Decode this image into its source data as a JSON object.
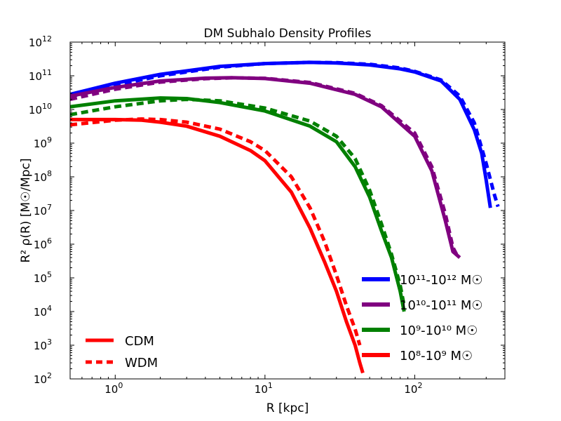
{
  "chart_data": {
    "type": "line",
    "title": "DM Subhalo Density Profiles",
    "xlabel": "R [kpc]",
    "ylabel": "R² ρ(R) [M☉/Mpc]",
    "xscale": "log",
    "yscale": "log",
    "xlim": [
      0.5,
      400
    ],
    "ylim": [
      100,
      1000000000000
    ],
    "x_tick_base": "10",
    "x_tick_exponents": [
      "0",
      "1",
      "2"
    ],
    "y_tick_base": "10",
    "y_tick_exponents": [
      "2",
      "3",
      "4",
      "5",
      "6",
      "7",
      "8",
      "9",
      "10",
      "11",
      "12"
    ],
    "style_legend": [
      {
        "label": "CDM",
        "style": "solid",
        "color": "#ff0000"
      },
      {
        "label": "WDM",
        "style": "dotted",
        "color": "#ff0000"
      }
    ],
    "mass_legend": [
      {
        "label": "10¹¹-10¹² M☉",
        "color": "#0000ff"
      },
      {
        "label": "10¹⁰-10¹¹ M☉",
        "color": "#800080"
      },
      {
        "label": "10⁹-10¹⁰ M☉",
        "color": "#008000"
      },
      {
        "label": "10⁸-10⁹ M☉",
        "color": "#ff0000"
      }
    ],
    "series": [
      {
        "name": "10^11-10^12 CDM",
        "color": "#0000ff",
        "style": "solid",
        "x": [
          0.5,
          1,
          2,
          5,
          10,
          20,
          30,
          50,
          80,
          100,
          150,
          200,
          250,
          280,
          300,
          320
        ],
        "y": [
          28000000000.0,
          60000000000.0,
          110000000000.0,
          190000000000.0,
          230000000000.0,
          250000000000.0,
          240000000000.0,
          210000000000.0,
          160000000000.0,
          130000000000.0,
          70000000000.0,
          20000000000.0,
          2500000000.0,
          500000000.0,
          80000000.0,
          12000000.0
        ]
      },
      {
        "name": "10^11-10^12 WDM",
        "color": "#0000ff",
        "style": "dashed",
        "x": [
          0.5,
          1,
          2,
          5,
          10,
          20,
          30,
          50,
          80,
          100,
          150,
          200,
          250,
          300,
          340,
          360
        ],
        "y": [
          24000000000.0,
          52000000000.0,
          100000000000.0,
          180000000000.0,
          230000000000.0,
          250000000000.0,
          245000000000.0,
          220000000000.0,
          170000000000.0,
          135000000000.0,
          75000000000.0,
          25000000000.0,
          4000000000.0,
          250000000.0,
          30000000.0,
          13000000.0
        ]
      },
      {
        "name": "10^10-10^11 CDM",
        "color": "#800080",
        "style": "solid",
        "x": [
          0.5,
          1,
          2,
          4,
          6,
          10,
          20,
          40,
          60,
          100,
          130,
          160,
          180,
          200
        ],
        "y": [
          25000000000.0,
          45000000000.0,
          70000000000.0,
          85000000000.0,
          88000000000.0,
          83000000000.0,
          60000000000.0,
          28000000000.0,
          12000000000.0,
          1600000000.0,
          150000000.0,
          5000000.0,
          600000.0,
          400000.0
        ]
      },
      {
        "name": "10^10-10^11 WDM",
        "color": "#800080",
        "style": "dashed",
        "x": [
          0.5,
          1,
          2,
          4,
          6,
          10,
          20,
          40,
          60,
          100,
          130,
          160,
          180,
          190
        ],
        "y": [
          20000000000.0,
          40000000000.0,
          65000000000.0,
          82000000000.0,
          87000000000.0,
          84000000000.0,
          63000000000.0,
          30000000000.0,
          13000000000.0,
          2000000000.0,
          200000000.0,
          8000000.0,
          800000.0,
          500000.0
        ]
      },
      {
        "name": "10^9-10^10 CDM",
        "color": "#008000",
        "style": "solid",
        "x": [
          0.5,
          1,
          2,
          3,
          5,
          10,
          20,
          30,
          40,
          50,
          60,
          70,
          80,
          85
        ],
        "y": [
          12000000000.0,
          18000000000.0,
          22000000000.0,
          21000000000.0,
          16000000000.0,
          9000000000.0,
          3200000000.0,
          1100000000.0,
          200000000.0,
          25000000.0,
          2500000.0,
          400000.0,
          40000.0,
          10000.0
        ]
      },
      {
        "name": "10^9-10^10 WDM",
        "color": "#008000",
        "style": "dashed",
        "x": [
          0.5,
          1,
          2,
          3,
          5,
          10,
          20,
          30,
          40,
          50,
          60,
          70,
          80,
          85
        ],
        "y": [
          7000000000.0,
          12000000000.0,
          18000000000.0,
          20000000000.0,
          18000000000.0,
          11000000000.0,
          4500000000.0,
          1600000000.0,
          350000000.0,
          40000000.0,
          4000000.0,
          500000.0,
          60000.0,
          15000.0
        ]
      },
      {
        "name": "10^8-10^9 CDM",
        "color": "#ff0000",
        "style": "solid",
        "x": [
          0.5,
          1,
          1.5,
          2,
          3,
          5,
          8,
          10,
          15,
          20,
          25,
          30,
          35,
          40,
          43,
          45
        ],
        "y": [
          5000000000.0,
          5000000000.0,
          4800000000.0,
          4200000000.0,
          3200000000.0,
          1600000000.0,
          600000000.0,
          300000000.0,
          35000000.0,
          3000000.0,
          300000.0,
          40000.0,
          5000.0,
          1000.0,
          300.0,
          150.0
        ]
      },
      {
        "name": "10^8-10^9 WDM",
        "color": "#ff0000",
        "style": "dashed",
        "x": [
          0.5,
          1,
          1.5,
          2,
          3,
          5,
          8,
          10,
          15,
          20,
          25,
          30,
          35,
          40,
          43
        ],
        "y": [
          3500000000.0,
          4800000000.0,
          5200000000.0,
          5000000000.0,
          4200000000.0,
          2600000000.0,
          1100000000.0,
          600000000.0,
          100000000.0,
          12000000.0,
          1200000.0,
          120000.0,
          15000.0,
          3000.0,
          1000.0
        ]
      }
    ]
  }
}
